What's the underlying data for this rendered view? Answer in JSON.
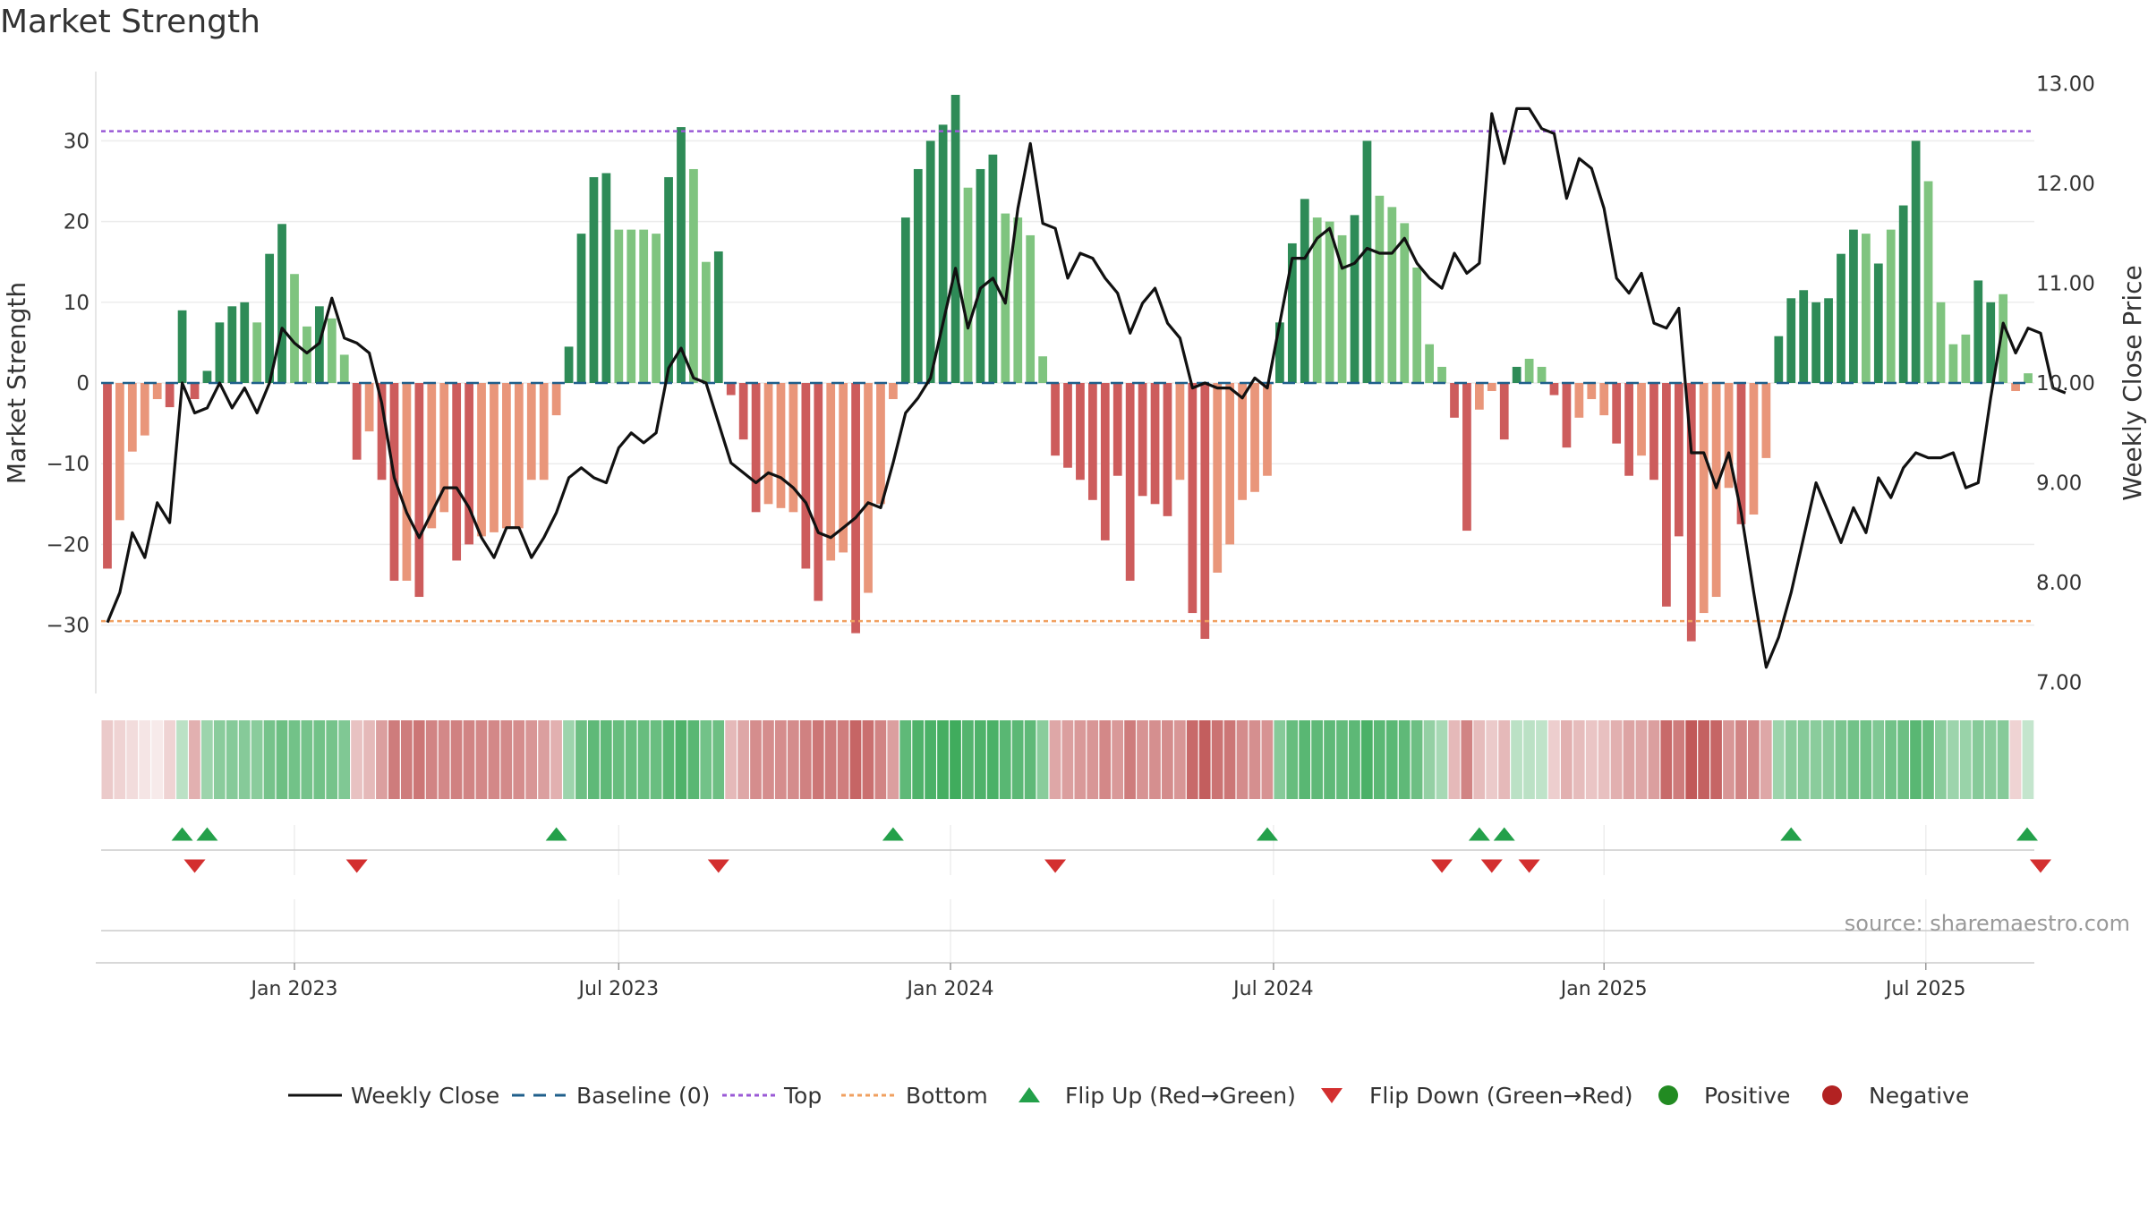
{
  "title": "Market Strength",
  "source": "source: sharemaestro.com",
  "colors": {
    "strong_green": "#2e8b57",
    "light_green": "#7fc47f",
    "strong_red": "#cd5c5c",
    "light_red": "#e9967a",
    "line": "#111111",
    "baseline": "#1f5f8b",
    "top": "#9a59d6",
    "bottom": "#f0a060",
    "flip_up": "#23a04a",
    "flip_down": "#d32f2f",
    "positive": "#228b22",
    "negative": "#b22222"
  },
  "chart_data": {
    "type": "bar+line",
    "title": "Market Strength",
    "ylabel": "Market Strength",
    "y2label": "Weekly Close Price",
    "ylim": [
      -38,
      38
    ],
    "y2lim": [
      6.8,
      13.1
    ],
    "yticks": [
      "30",
      "20",
      "10",
      "0",
      "−10",
      "−20",
      "−30"
    ],
    "yticks_values": [
      30,
      20,
      10,
      0,
      -10,
      -20,
      -30
    ],
    "y2ticks": [
      "13.00",
      "12.00",
      "11.00",
      "10.00",
      "9.00",
      "8.00",
      "7.00"
    ],
    "y2ticks_values": [
      13,
      12,
      11,
      10,
      9,
      8,
      7
    ],
    "top_level": 31.2,
    "bottom_level": -29.5,
    "baseline": 0,
    "xticks": [
      "Jan 2023",
      "Jul 2023",
      "Jan 2024",
      "Jul 2024",
      "Jan 2025",
      "Jul 2025"
    ],
    "xticks_week_index": [
      15,
      41,
      67.6,
      93.5,
      120,
      145.8
    ],
    "strength": [
      -23,
      -17,
      -8.5,
      -6.5,
      -2,
      -3,
      9,
      -2,
      1.5,
      7.5,
      9.5,
      10,
      7.5,
      16,
      19.7,
      13.5,
      7,
      9.5,
      8,
      3.5,
      -9.5,
      -6,
      -12,
      -24.5,
      -24.5,
      -26.5,
      -18,
      -16,
      -22,
      -20,
      -19,
      -18.5,
      -18,
      -18,
      -12,
      -12,
      -4,
      4.5,
      18.5,
      25.5,
      26,
      19,
      19,
      19,
      18.5,
      25.5,
      31.7,
      26.5,
      15,
      16.3,
      -1.5,
      -7,
      -16,
      -15,
      -15.5,
      -16,
      -23,
      -27,
      -22,
      -21,
      -31,
      -26,
      -15,
      -2,
      20.5,
      26.5,
      30,
      32,
      35.7,
      24.2,
      26.5,
      28.3,
      21,
      20.5,
      18.3,
      3.3,
      -9,
      -10.5,
      -12,
      -14.5,
      -19.5,
      -11.5,
      -24.5,
      -14,
      -15,
      -16.5,
      -12,
      -28.5,
      -31.7,
      -23.5,
      -20,
      -14.5,
      -13.5,
      -11.5,
      7.5,
      17.3,
      22.8,
      20.5,
      20,
      18.3,
      20.8,
      30,
      23.2,
      21.8,
      19.8,
      14.3,
      4.8,
      2,
      -4.3,
      -18.3,
      -3.3,
      -1,
      -7,
      2,
      3,
      2,
      -1.5,
      -8,
      -4.3,
      -2,
      -4,
      -7.5,
      -11.5,
      -9,
      -12,
      -27.7,
      -19,
      -32,
      -28.5,
      -26.5,
      -13,
      -17.5,
      -16.3,
      -9.3,
      5.8,
      10.5,
      11.5,
      10,
      10.5,
      16,
      19,
      18.5,
      14.8,
      19,
      22,
      30,
      25,
      10,
      4.8,
      6,
      12.7,
      10,
      11,
      -1,
      1.2
    ],
    "strength_tone": [
      1,
      0,
      0,
      0,
      0,
      1,
      1,
      1,
      1,
      1,
      1,
      1,
      0,
      1,
      1,
      0,
      0,
      1,
      0,
      0,
      1,
      0,
      1,
      1,
      0,
      1,
      0,
      0,
      1,
      1,
      0,
      0,
      0,
      0,
      0,
      0,
      0,
      1,
      1,
      1,
      1,
      0,
      0,
      0,
      0,
      1,
      1,
      0,
      0,
      1,
      1,
      1,
      1,
      0,
      0,
      0,
      1,
      1,
      0,
      0,
      1,
      0,
      0,
      0,
      1,
      1,
      1,
      1,
      1,
      0,
      1,
      1,
      0,
      0,
      0,
      0,
      1,
      1,
      1,
      1,
      1,
      1,
      1,
      1,
      1,
      1,
      0,
      1,
      1,
      0,
      0,
      0,
      0,
      0,
      1,
      1,
      1,
      0,
      0,
      0,
      1,
      1,
      0,
      0,
      0,
      0,
      0,
      0,
      1,
      1,
      0,
      0,
      1,
      1,
      0,
      0,
      1,
      1,
      0,
      0,
      0,
      1,
      1,
      0,
      1,
      1,
      1,
      1,
      0,
      0,
      0,
      1,
      0,
      0,
      1,
      1,
      1,
      1,
      1,
      1,
      1,
      0,
      1,
      0,
      1,
      1,
      0,
      0,
      0,
      0,
      1,
      1,
      0,
      0,
      0,
      0
    ],
    "close": [
      7.6,
      7.9,
      8.5,
      8.25,
      8.8,
      8.6,
      10.0,
      9.7,
      9.75,
      10.0,
      9.75,
      9.95,
      9.7,
      10.0,
      10.55,
      10.4,
      10.3,
      10.4,
      10.85,
      10.45,
      10.4,
      10.3,
      9.8,
      9.05,
      8.7,
      8.45,
      8.7,
      8.95,
      8.95,
      8.75,
      8.45,
      8.25,
      8.55,
      8.55,
      8.25,
      8.45,
      8.7,
      9.05,
      9.15,
      9.05,
      9.0,
      9.35,
      9.5,
      9.4,
      9.5,
      10.15,
      10.35,
      10.05,
      10.0,
      9.6,
      9.2,
      9.1,
      9.0,
      9.1,
      9.05,
      8.95,
      8.8,
      8.5,
      8.45,
      8.55,
      8.65,
      8.8,
      8.75,
      9.2,
      9.7,
      9.85,
      10.05,
      10.6,
      11.15,
      10.55,
      10.95,
      11.05,
      10.8,
      11.75,
      12.4,
      11.6,
      11.55,
      11.05,
      11.3,
      11.25,
      11.05,
      10.9,
      10.5,
      10.8,
      10.95,
      10.6,
      10.45,
      9.95,
      10.0,
      9.95,
      9.95,
      9.85,
      10.05,
      9.95,
      10.6,
      11.25,
      11.25,
      11.45,
      11.55,
      11.15,
      11.2,
      11.35,
      11.3,
      11.3,
      11.45,
      11.2,
      11.05,
      10.95,
      11.3,
      11.1,
      11.2,
      12.7,
      12.2,
      12.75,
      12.75,
      12.55,
      12.5,
      11.85,
      12.25,
      12.15,
      11.75,
      11.05,
      10.9,
      11.1,
      10.6,
      10.55,
      10.75,
      9.3,
      9.3,
      8.95,
      9.3,
      8.7,
      7.9,
      7.15,
      7.45,
      7.9,
      8.45,
      9.0,
      8.7,
      8.4,
      8.75,
      8.5,
      9.05,
      8.85,
      9.15,
      9.3,
      9.25,
      9.25,
      9.3,
      8.95,
      9.0,
      9.85,
      10.6,
      10.3,
      10.55,
      10.5,
      9.95,
      9.9
    ],
    "flip_up_weeks": [
      6,
      8,
      36,
      63,
      93,
      110,
      112,
      135,
      156
    ],
    "flip_down_weeks": [
      7,
      20,
      49,
      76,
      107,
      111,
      114,
      155
    ],
    "strip_shade": [
      0.3,
      0.25,
      0.2,
      0.15,
      0.12,
      0.25,
      0.35,
      0.45,
      0.5,
      0.6,
      0.62,
      0.62,
      0.6,
      0.7,
      0.75,
      0.72,
      0.7,
      0.72,
      0.7,
      0.65,
      0.35,
      0.4,
      0.55,
      0.75,
      0.75,
      0.78,
      0.7,
      0.68,
      0.72,
      0.7,
      0.68,
      0.68,
      0.67,
      0.65,
      0.6,
      0.55,
      0.45,
      0.5,
      0.75,
      0.82,
      0.82,
      0.78,
      0.78,
      0.78,
      0.77,
      0.85,
      0.9,
      0.85,
      0.72,
      0.75,
      0.4,
      0.5,
      0.65,
      0.65,
      0.65,
      0.66,
      0.72,
      0.78,
      0.75,
      0.74,
      0.88,
      0.82,
      0.7,
      0.55,
      0.82,
      0.9,
      0.92,
      0.95,
      0.98,
      0.88,
      0.9,
      0.92,
      0.85,
      0.84,
      0.82,
      0.6,
      0.5,
      0.55,
      0.58,
      0.6,
      0.68,
      0.58,
      0.75,
      0.62,
      0.64,
      0.66,
      0.6,
      0.85,
      0.92,
      0.8,
      0.78,
      0.66,
      0.64,
      0.62,
      0.62,
      0.78,
      0.85,
      0.82,
      0.82,
      0.8,
      0.83,
      0.92,
      0.84,
      0.84,
      0.82,
      0.75,
      0.55,
      0.45,
      0.4,
      0.7,
      0.38,
      0.3,
      0.4,
      0.35,
      0.35,
      0.33,
      0.28,
      0.45,
      0.38,
      0.33,
      0.36,
      0.45,
      0.52,
      0.5,
      0.55,
      0.85,
      0.75,
      0.95,
      0.9,
      0.88,
      0.6,
      0.7,
      0.68,
      0.5,
      0.5,
      0.6,
      0.62,
      0.6,
      0.62,
      0.68,
      0.72,
      0.72,
      0.65,
      0.72,
      0.75,
      0.85,
      0.78,
      0.6,
      0.5,
      0.52,
      0.62,
      0.6,
      0.62,
      0.25,
      0.3
    ],
    "legend": [
      "Weekly Close",
      "Baseline (0)",
      "Top",
      "Bottom",
      "Flip Up (Red→Green)",
      "Flip Down (Green→Red)",
      "Positive",
      "Negative"
    ]
  }
}
